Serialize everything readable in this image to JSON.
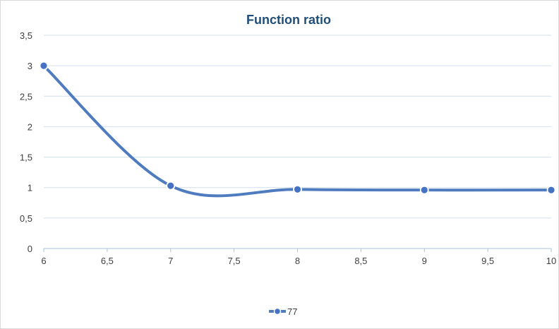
{
  "chart_data": {
    "type": "line",
    "title": "Function ratio",
    "xlabel": "",
    "ylabel": "",
    "xlim": [
      6,
      10
    ],
    "ylim": [
      0,
      3.5
    ],
    "x_ticks": [
      "6",
      "6,5",
      "7",
      "7,5",
      "8",
      "8,5",
      "9",
      "9,5",
      "10"
    ],
    "y_ticks": [
      "0",
      "0,5",
      "1",
      "1,5",
      "2",
      "2,5",
      "3",
      "3,5"
    ],
    "x_tick_values": [
      6,
      6.5,
      7,
      7.5,
      8,
      8.5,
      9,
      9.5,
      10
    ],
    "y_tick_values": [
      0,
      0.5,
      1,
      1.5,
      2,
      2.5,
      3,
      3.5
    ],
    "smooth": true,
    "grid": "horizontal",
    "legend": "bottom",
    "series": [
      {
        "name": "77",
        "x": [
          6,
          7,
          8,
          9,
          10
        ],
        "values": [
          3.0,
          1.03,
          0.97,
          0.96,
          0.96
        ]
      }
    ]
  },
  "colors": {
    "series": "#4472c4",
    "series_stroke": "#4f7bbf",
    "marker_outline": "#ffffff",
    "title": "#1f4e79",
    "tick_label": "#404040",
    "gridline": "#d0dfee",
    "axis": "#a9c3df",
    "frame": "#d9d9d9"
  }
}
